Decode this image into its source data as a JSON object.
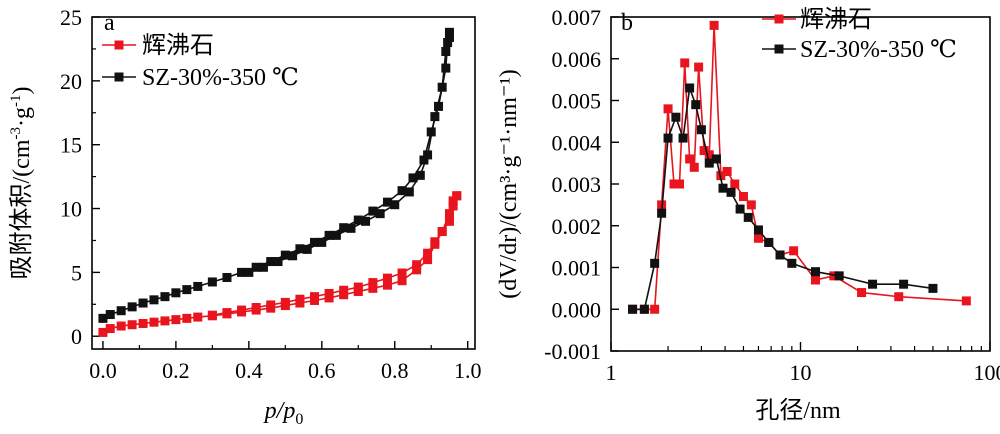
{
  "chart_data": [
    {
      "panel_label": "a",
      "type": "scatter",
      "xlabel_main": "p/p",
      "xlabel_sub": "0",
      "ylabel": "吸附体积/(cm",
      "ylabel_sup1": "-3",
      "ylabel_mid": "·g",
      "ylabel_sup2": "-1",
      "ylabel_end": ")",
      "xlim": [
        -0.03,
        1.02
      ],
      "ylim": [
        -1,
        25
      ],
      "xticks": [
        "0.0",
        "0.2",
        "0.4",
        "0.6",
        "0.8",
        "1.0"
      ],
      "yticks": [
        "0",
        "5",
        "10",
        "15",
        "20",
        "25"
      ],
      "legend_position": "top-left",
      "series": [
        {
          "name": "辉沸石",
          "color": "#e8141e",
          "x": [
            0.0,
            0.02,
            0.05,
            0.08,
            0.11,
            0.14,
            0.17,
            0.2,
            0.23,
            0.26,
            0.3,
            0.34,
            0.38,
            0.42,
            0.46,
            0.5,
            0.54,
            0.58,
            0.62,
            0.66,
            0.7,
            0.74,
            0.78,
            0.82,
            0.86,
            0.89,
            0.91,
            0.93,
            0.95,
            0.96,
            0.97
          ],
          "y": [
            0.3,
            0.6,
            0.8,
            0.9,
            1.0,
            1.1,
            1.2,
            1.3,
            1.4,
            1.5,
            1.6,
            1.75,
            1.9,
            2.05,
            2.2,
            2.4,
            2.6,
            2.8,
            3.0,
            3.25,
            3.5,
            3.75,
            4.0,
            4.35,
            5.2,
            6.0,
            7.2,
            8.2,
            9.0,
            10.2,
            11.0
          ],
          "x_desorption": [
            0.97,
            0.96,
            0.95,
            0.93,
            0.91,
            0.89,
            0.86,
            0.82,
            0.78,
            0.74,
            0.7,
            0.66,
            0.62,
            0.58,
            0.54,
            0.5,
            0.46,
            0.42,
            0.38,
            0.34,
            0.3
          ],
          "y_desorption": [
            11.0,
            10.6,
            9.6,
            8.2,
            7.4,
            6.5,
            5.6,
            4.95,
            4.55,
            4.2,
            3.85,
            3.6,
            3.35,
            3.1,
            2.9,
            2.65,
            2.45,
            2.25,
            2.05,
            1.85,
            1.65
          ]
        },
        {
          "name": "SZ-30%-350 ℃",
          "color": "#111111",
          "x": [
            0.0,
            0.02,
            0.05,
            0.08,
            0.11,
            0.14,
            0.17,
            0.2,
            0.23,
            0.26,
            0.3,
            0.34,
            0.38,
            0.42,
            0.46,
            0.5,
            0.54,
            0.58,
            0.62,
            0.66,
            0.7,
            0.74,
            0.78,
            0.82,
            0.85,
            0.88,
            0.9,
            0.92,
            0.94,
            0.945,
            0.95
          ],
          "y": [
            1.4,
            1.7,
            2.0,
            2.3,
            2.6,
            2.85,
            3.1,
            3.4,
            3.65,
            3.9,
            4.25,
            4.6,
            5.0,
            5.4,
            5.85,
            6.35,
            6.85,
            7.35,
            7.9,
            8.5,
            9.1,
            9.8,
            10.5,
            11.4,
            12.4,
            13.8,
            16.0,
            18.0,
            21.0,
            23.0,
            23.8
          ],
          "x_desorption": [
            0.95,
            0.94,
            0.93,
            0.91,
            0.89,
            0.87,
            0.84,
            0.8,
            0.76,
            0.72,
            0.68,
            0.64,
            0.6,
            0.56,
            0.52,
            0.48,
            0.44,
            0.4
          ],
          "y_desorption": [
            23.4,
            22.3,
            19.5,
            17.2,
            14.2,
            12.6,
            11.3,
            10.3,
            9.6,
            9.0,
            8.45,
            7.9,
            7.35,
            6.8,
            6.3,
            5.85,
            5.4,
            5.0
          ]
        }
      ]
    },
    {
      "panel_label": "b",
      "type": "line",
      "xscale": "log",
      "xlabel": "孔径/nm",
      "ylabel": "(dV/dr)/(cm³·g⁻¹·nm⁻¹)",
      "xlim": [
        1,
        100
      ],
      "ylim": [
        -0.001,
        0.007
      ],
      "xticks": [
        "1",
        "10",
        "100"
      ],
      "yticks": [
        "-0.001",
        "0.000",
        "0.001",
        "0.002",
        "0.003",
        "0.004",
        "0.005",
        "0.006",
        "0.007"
      ],
      "legend_position": "top-right",
      "series": [
        {
          "name": "辉沸石",
          "color": "#e8141e",
          "x": [
            1.3,
            1.5,
            1.7,
            1.85,
            2.0,
            2.15,
            2.3,
            2.45,
            2.6,
            2.75,
            2.9,
            3.1,
            3.3,
            3.5,
            3.8,
            4.1,
            4.5,
            5.0,
            5.5,
            6.0,
            6.8,
            7.8,
            9.2,
            12,
            15,
            21,
            33,
            75
          ],
          "y": [
            0.0,
            0.0,
            0.0,
            0.0025,
            0.0048,
            0.003,
            0.003,
            0.0059,
            0.0036,
            0.0034,
            0.0058,
            0.0038,
            0.0037,
            0.0068,
            0.0032,
            0.0033,
            0.003,
            0.0027,
            0.0025,
            0.0017,
            0.0016,
            0.0013,
            0.0014,
            0.0007,
            0.0008,
            0.0004,
            0.0003,
            0.0002
          ]
        },
        {
          "name": "SZ-30%-350 ℃",
          "color": "#111111",
          "x": [
            1.3,
            1.5,
            1.7,
            1.85,
            2.0,
            2.2,
            2.4,
            2.6,
            2.8,
            3.0,
            3.3,
            3.6,
            3.9,
            4.3,
            4.8,
            5.3,
            6.0,
            6.8,
            7.8,
            9.0,
            12,
            16,
            24,
            35,
            50
          ],
          "y": [
            0.0,
            0.0,
            0.0011,
            0.0023,
            0.0041,
            0.0046,
            0.0041,
            0.0053,
            0.0049,
            0.0043,
            0.0035,
            0.0036,
            0.0029,
            0.0028,
            0.0024,
            0.0022,
            0.0019,
            0.0016,
            0.0013,
            0.0011,
            0.0009,
            0.0008,
            0.0006,
            0.0006,
            0.0005
          ]
        }
      ]
    }
  ]
}
